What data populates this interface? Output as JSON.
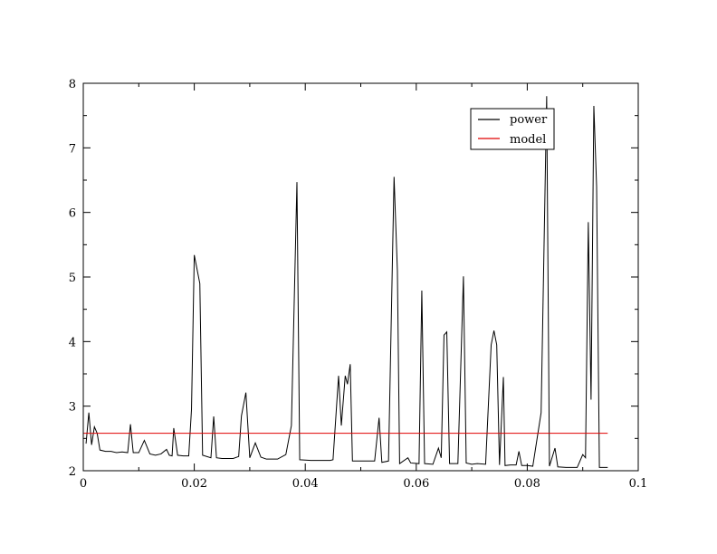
{
  "chart_data": {
    "type": "line",
    "title": "",
    "xlabel": "",
    "ylabel": "",
    "xlim": [
      0,
      0.1
    ],
    "ylim": [
      2,
      8
    ],
    "x_ticks": [
      0,
      0.02,
      0.04,
      0.06,
      0.08,
      0.1
    ],
    "x_tick_labels": [
      "0",
      "0.02",
      "0.04",
      "0.06",
      "0.08",
      "0.1"
    ],
    "y_ticks": [
      2,
      3,
      4,
      5,
      6,
      7,
      8
    ],
    "y_tick_labels": [
      "2",
      "3",
      "4",
      "5",
      "6",
      "7",
      "8"
    ],
    "grid": false,
    "legend_position": "top-right",
    "series": [
      {
        "name": "power",
        "color": "#000000",
        "points": [
          [
            0.0005,
            2.42
          ],
          [
            0.001,
            2.9
          ],
          [
            0.0015,
            2.4
          ],
          [
            0.002,
            2.68
          ],
          [
            0.0025,
            2.58
          ],
          [
            0.003,
            2.32
          ],
          [
            0.004,
            2.3
          ],
          [
            0.005,
            2.3
          ],
          [
            0.006,
            2.28
          ],
          [
            0.007,
            2.29
          ],
          [
            0.008,
            2.28
          ],
          [
            0.0085,
            2.72
          ],
          [
            0.009,
            2.28
          ],
          [
            0.01,
            2.28
          ],
          [
            0.011,
            2.47
          ],
          [
            0.012,
            2.26
          ],
          [
            0.013,
            2.24
          ],
          [
            0.014,
            2.26
          ],
          [
            0.015,
            2.33
          ],
          [
            0.0155,
            2.24
          ],
          [
            0.016,
            2.23
          ],
          [
            0.0163,
            2.66
          ],
          [
            0.017,
            2.24
          ],
          [
            0.018,
            2.23
          ],
          [
            0.019,
            2.23
          ],
          [
            0.0195,
            2.95
          ],
          [
            0.02,
            5.34
          ],
          [
            0.021,
            4.9
          ],
          [
            0.0215,
            2.24
          ],
          [
            0.023,
            2.2
          ],
          [
            0.0235,
            2.84
          ],
          [
            0.024,
            2.2
          ],
          [
            0.025,
            2.19
          ],
          [
            0.027,
            2.19
          ],
          [
            0.028,
            2.22
          ],
          [
            0.0285,
            2.85
          ],
          [
            0.0293,
            3.21
          ],
          [
            0.03,
            2.2
          ],
          [
            0.031,
            2.43
          ],
          [
            0.032,
            2.21
          ],
          [
            0.033,
            2.18
          ],
          [
            0.034,
            2.18
          ],
          [
            0.035,
            2.18
          ],
          [
            0.0365,
            2.25
          ],
          [
            0.0375,
            2.7
          ],
          [
            0.0385,
            6.47
          ],
          [
            0.039,
            2.17
          ],
          [
            0.041,
            2.16
          ],
          [
            0.043,
            2.16
          ],
          [
            0.0445,
            2.16
          ],
          [
            0.045,
            2.17
          ],
          [
            0.046,
            3.47
          ],
          [
            0.0465,
            2.7
          ],
          [
            0.0472,
            3.47
          ],
          [
            0.0476,
            3.34
          ],
          [
            0.0481,
            3.65
          ],
          [
            0.0485,
            2.15
          ],
          [
            0.0495,
            2.15
          ],
          [
            0.051,
            2.15
          ],
          [
            0.0525,
            2.15
          ],
          [
            0.0533,
            2.82
          ],
          [
            0.0538,
            2.13
          ],
          [
            0.055,
            2.15
          ],
          [
            0.056,
            6.55
          ],
          [
            0.0566,
            5.1
          ],
          [
            0.057,
            2.11
          ],
          [
            0.0585,
            2.2
          ],
          [
            0.059,
            2.12
          ],
          [
            0.0605,
            2.11
          ],
          [
            0.061,
            4.79
          ],
          [
            0.0615,
            2.11
          ],
          [
            0.063,
            2.1
          ],
          [
            0.064,
            2.35
          ],
          [
            0.0645,
            2.2
          ],
          [
            0.065,
            4.1
          ],
          [
            0.0655,
            4.15
          ],
          [
            0.066,
            2.11
          ],
          [
            0.0675,
            2.11
          ],
          [
            0.0685,
            5.01
          ],
          [
            0.069,
            2.12
          ],
          [
            0.07,
            2.1
          ],
          [
            0.071,
            2.11
          ],
          [
            0.0725,
            2.1
          ],
          [
            0.0735,
            3.95
          ],
          [
            0.074,
            4.17
          ],
          [
            0.0745,
            3.95
          ],
          [
            0.075,
            2.09
          ],
          [
            0.0757,
            3.45
          ],
          [
            0.076,
            2.08
          ],
          [
            0.077,
            2.09
          ],
          [
            0.078,
            2.09
          ],
          [
            0.0785,
            2.3
          ],
          [
            0.079,
            2.08
          ],
          [
            0.08,
            2.08
          ],
          [
            0.081,
            2.07
          ],
          [
            0.0825,
            2.9
          ],
          [
            0.0835,
            7.8
          ],
          [
            0.084,
            2.07
          ],
          [
            0.085,
            2.35
          ],
          [
            0.0855,
            2.06
          ],
          [
            0.087,
            2.05
          ],
          [
            0.089,
            2.05
          ],
          [
            0.09,
            2.25
          ],
          [
            0.0905,
            2.2
          ],
          [
            0.091,
            5.85
          ],
          [
            0.0915,
            3.1
          ],
          [
            0.092,
            7.65
          ],
          [
            0.0925,
            6.4
          ],
          [
            0.093,
            2.05
          ],
          [
            0.0945,
            2.05
          ]
        ]
      },
      {
        "name": "model",
        "color": "#e00000",
        "points": [
          [
            0,
            2.58
          ],
          [
            0.0945,
            2.58
          ]
        ]
      }
    ]
  }
}
